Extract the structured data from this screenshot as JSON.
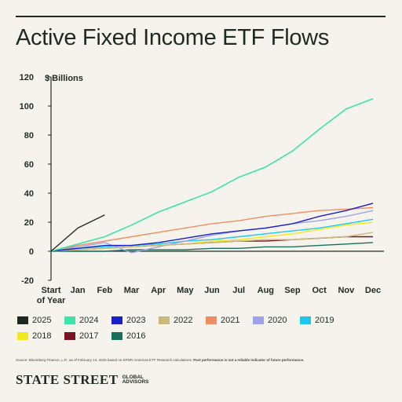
{
  "title": "Active Fixed Income ETF Flows",
  "source_text": "Source: Bloomberg Finance, L.P., as of February 14, 2025 based on SPDR Americas ETF Research calculations.",
  "disclaimer": "Past performance is not a reliable indicator of future performance.",
  "brand": {
    "name": "STATE STREET",
    "sub1": "GLOBAL",
    "sub2": "ADVISORS"
  },
  "chart_data": {
    "type": "line",
    "title": "Active Fixed Income ETF Flows",
    "ylabel": "$ Billions",
    "xlabel": "",
    "x_labels": [
      "Start of Year",
      "Jan",
      "Feb",
      "Mar",
      "Apr",
      "May",
      "Jun",
      "Jul",
      "Aug",
      "Sep",
      "Oct",
      "Nov",
      "Dec"
    ],
    "ylim": [
      -20,
      120
    ],
    "yticks": [
      -20,
      0,
      20,
      40,
      60,
      80,
      100,
      120
    ],
    "grid": false,
    "legend_position": "bottom",
    "series": [
      {
        "name": "2025",
        "color": "#1d2a22",
        "values": [
          0,
          16,
          25
        ]
      },
      {
        "name": "2024",
        "color": "#3de3a8",
        "values": [
          0,
          5,
          10,
          18,
          27,
          34,
          41,
          51,
          58,
          69,
          84,
          98,
          105
        ]
      },
      {
        "name": "2023",
        "color": "#1a20c8",
        "values": [
          0,
          2,
          4,
          4,
          6,
          9,
          12,
          14,
          16,
          19,
          24,
          28,
          33
        ]
      },
      {
        "name": "2022",
        "color": "#c9b97c",
        "values": [
          0,
          1,
          2,
          3,
          4,
          5,
          6,
          7,
          8,
          8,
          9,
          10,
          13
        ]
      },
      {
        "name": "2021",
        "color": "#f08d62",
        "values": [
          0,
          4,
          7,
          10,
          13,
          16,
          19,
          21,
          24,
          26,
          28,
          29,
          30
        ]
      },
      {
        "name": "2020",
        "color": "#9ba4ea",
        "values": [
          0,
          3,
          6,
          -1,
          3,
          7,
          11,
          14,
          16,
          19,
          21,
          24,
          28
        ]
      },
      {
        "name": "2019",
        "color": "#1fc8ea",
        "values": [
          0,
          2,
          3,
          4,
          5,
          7,
          8,
          10,
          12,
          14,
          16,
          19,
          22
        ]
      },
      {
        "name": "2018",
        "color": "#f2e81e",
        "values": [
          0,
          1,
          2,
          3,
          4,
          5,
          7,
          8,
          10,
          12,
          15,
          18,
          20
        ]
      },
      {
        "name": "2017",
        "color": "#7a1420",
        "values": [
          0,
          1,
          2,
          3,
          4,
          5,
          6,
          7,
          7,
          8,
          9,
          10,
          10
        ]
      },
      {
        "name": "2016",
        "color": "#16705c",
        "values": [
          0,
          0,
          0,
          1,
          1,
          1,
          2,
          2,
          3,
          3,
          4,
          5,
          6
        ]
      }
    ]
  }
}
